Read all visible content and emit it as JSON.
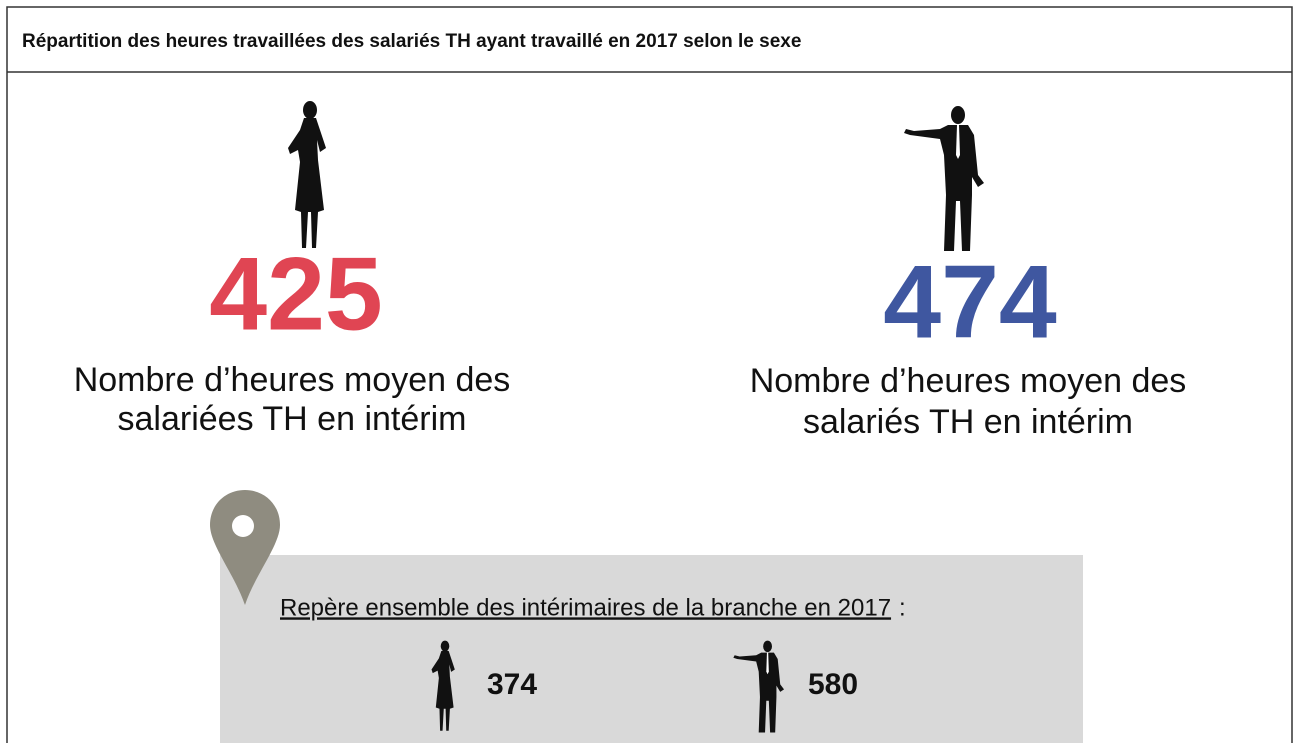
{
  "title": "Répartition des heures travaillées des salariés TH ayant travaillé en 2017 selon le sexe",
  "women": {
    "value": 425,
    "label": [
      "Nombre d’heures moyen des",
      "salariées TH en intérim"
    ]
  },
  "men": {
    "value": 474,
    "label": [
      "Nombre d’heures moyen des",
      "salariés TH en intérim"
    ]
  },
  "reference": {
    "label": "Repère ensemble des intérimaires de la branche en 2017",
    "suffix": ":",
    "women": 374,
    "men": 580
  }
}
